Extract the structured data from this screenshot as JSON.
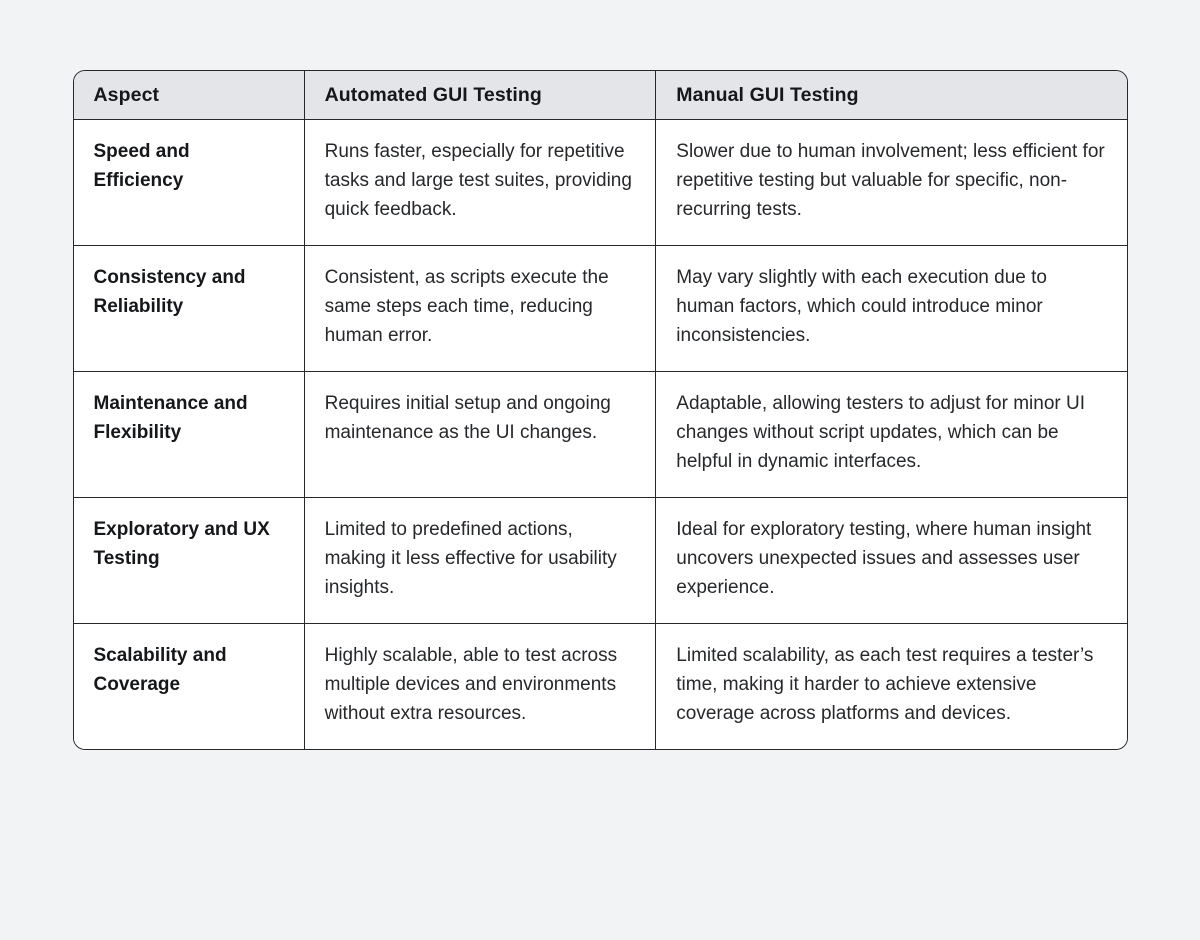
{
  "table": {
    "columns": [
      {
        "label": "Aspect"
      },
      {
        "label": "Automated GUI Testing"
      },
      {
        "label": "Manual GUI Testing"
      }
    ],
    "rows": [
      {
        "aspect": "Speed and Efficiency",
        "automated": "Runs faster, especially for repetitive tasks and large test suites, providing quick feedback.",
        "manual": "Slower due to human involvement; less efficient for repetitive testing but valuable for specific, non-recurring tests."
      },
      {
        "aspect": "Consistency and Reliability",
        "automated": "Consistent, as scripts execute the same steps each time, reducing human error.",
        "manual": "May vary slightly with each execution due to human factors, which could introduce minor inconsistencies."
      },
      {
        "aspect": "Maintenance and Flexibility",
        "automated": "Requires initial setup and ongoing maintenance as the UI changes.",
        "manual": "Adaptable, allowing testers to adjust for minor UI changes without script updates, which can be helpful in dynamic interfaces."
      },
      {
        "aspect": "Exploratory and UX Testing",
        "automated": "Limited to predefined actions, making it less effective for usability insights.",
        "manual": "Ideal for exploratory testing, where human insight uncovers unexpected issues and assesses user experience."
      },
      {
        "aspect": "Scalability and Coverage",
        "automated": "Highly scalable, able to test across multiple devices and environments without extra resources.",
        "manual": "Limited scalability, as each test requires a tester’s time, making it harder to achieve extensive coverage across platforms and devices."
      }
    ]
  },
  "colors": {
    "page_background": "#f1f3f5",
    "table_background": "#ffffff",
    "header_background": "#e3e5e8",
    "border": "#26282c",
    "text": "#26282c"
  }
}
